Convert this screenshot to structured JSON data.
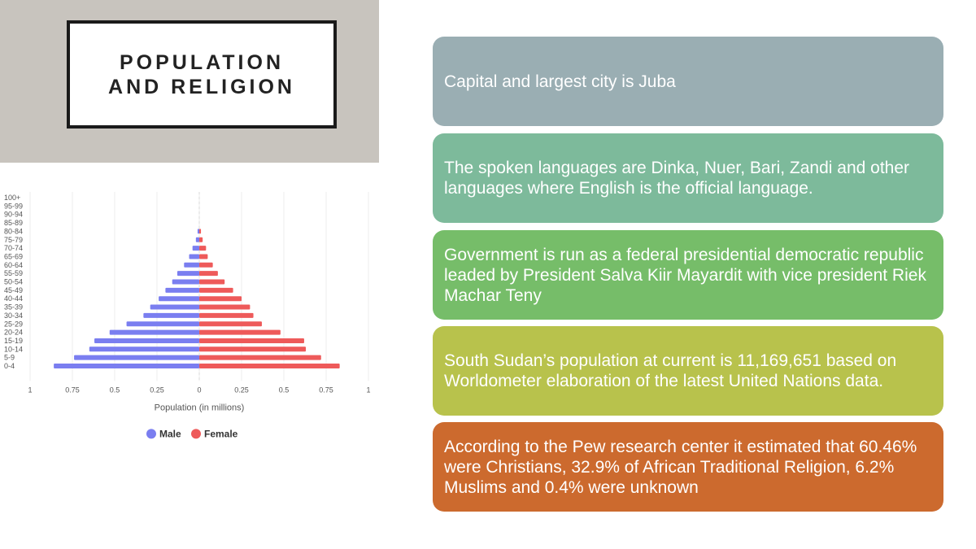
{
  "slide": {
    "title_line1": "POPULATION",
    "title_line2": "AND RELIGION"
  },
  "cards": [
    {
      "text": "Capital and largest city is Juba",
      "color": "#9aaeb3"
    },
    {
      "text": "The spoken languages are Dinka, Nuer, Bari, Zandi and other languages where English is the official language.",
      "color": "#7dba9b"
    },
    {
      "text": "Government is run as a federal presidential democratic republic leaded by President Salva Kiir Mayardit with vice president Riek Machar Teny",
      "color": "#76bd69"
    },
    {
      "text": "South Sudan’s population at current is 11,169,651 based on Worldometer elaboration of the latest United Nations data.",
      "color": "#b8c24c"
    },
    {
      "text": "According to the Pew research center it estimated that 60.46% were Christians, 32.9% of African Traditional Religion, 6.2% Muslims and 0.4% were unknown",
      "color": "#cc6a2e"
    }
  ],
  "chart_data": {
    "type": "bar",
    "orientation": "horizontal",
    "categories": [
      "100+",
      "95-99",
      "90-94",
      "85-89",
      "80-84",
      "75-79",
      "70-74",
      "65-69",
      "60-64",
      "55-59",
      "50-54",
      "45-49",
      "40-44",
      "35-39",
      "30-34",
      "25-29",
      "20-24",
      "15-19",
      "10-14",
      "5-9",
      "0-4"
    ],
    "series": [
      {
        "name": "Male",
        "color": "#7a7ef0",
        "values": [
          0,
          0,
          0,
          0,
          0.01,
          0.02,
          0.04,
          0.06,
          0.09,
          0.13,
          0.16,
          0.2,
          0.24,
          0.29,
          0.33,
          0.43,
          0.53,
          0.62,
          0.65,
          0.74,
          0.86
        ]
      },
      {
        "name": "Female",
        "color": "#ee5a5a",
        "values": [
          0,
          0,
          0,
          0,
          0.01,
          0.02,
          0.04,
          0.05,
          0.08,
          0.11,
          0.15,
          0.2,
          0.25,
          0.3,
          0.32,
          0.37,
          0.48,
          0.62,
          0.63,
          0.72,
          0.83
        ]
      }
    ],
    "x_ticks": [
      "1",
      "0.75",
      "0.5",
      "0.25",
      "0",
      "0.25",
      "0.5",
      "0.75",
      "1"
    ],
    "xlim": [
      -1,
      1
    ],
    "xlabel": "Population (in millions)",
    "legend": [
      "Male",
      "Female"
    ],
    "legend_position": "bottom",
    "grid": true
  }
}
